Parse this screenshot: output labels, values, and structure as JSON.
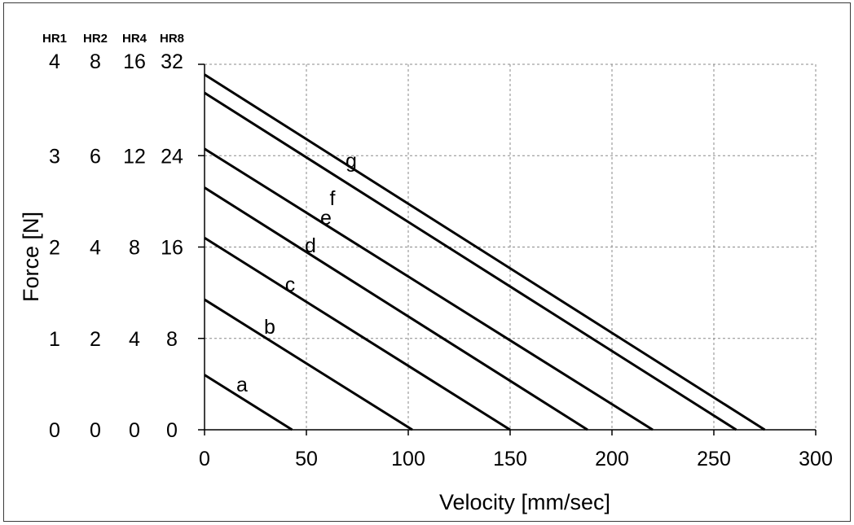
{
  "chart_data": {
    "type": "line",
    "xlabel": "Velocity [mm/sec]",
    "ylabel": "Force [N]",
    "xlim": [
      0,
      300
    ],
    "ylim": [
      0,
      32
    ],
    "x_ticks": [
      "0",
      "50",
      "100",
      "150",
      "200",
      "250",
      "300"
    ],
    "y_axes": [
      {
        "name": "HR1",
        "ticks": [
          "0",
          "1",
          "2",
          "3",
          "4"
        ]
      },
      {
        "name": "HR2",
        "ticks": [
          "0",
          "2",
          "4",
          "6",
          "8"
        ]
      },
      {
        "name": "HR4",
        "ticks": [
          "0",
          "4",
          "8",
          "12",
          "16"
        ]
      },
      {
        "name": "HR8",
        "ticks": [
          "0",
          "8",
          "16",
          "24",
          "32"
        ]
      }
    ],
    "grid": true,
    "series": [
      {
        "name": "a",
        "x": [
          0,
          43
        ],
        "y": [
          4.8,
          0
        ]
      },
      {
        "name": "b",
        "x": [
          0,
          102
        ],
        "y": [
          11.4,
          0
        ]
      },
      {
        "name": "c",
        "x": [
          0,
          150
        ],
        "y": [
          16.8,
          0
        ]
      },
      {
        "name": "d",
        "x": [
          0,
          188
        ],
        "y": [
          21.2,
          0
        ]
      },
      {
        "name": "e",
        "x": [
          0,
          220
        ],
        "y": [
          24.6,
          0
        ]
      },
      {
        "name": "f",
        "x": [
          0,
          261
        ],
        "y": [
          29.5,
          0
        ]
      },
      {
        "name": "g",
        "x": [
          0,
          275
        ],
        "y": [
          31.1,
          0
        ]
      }
    ]
  }
}
